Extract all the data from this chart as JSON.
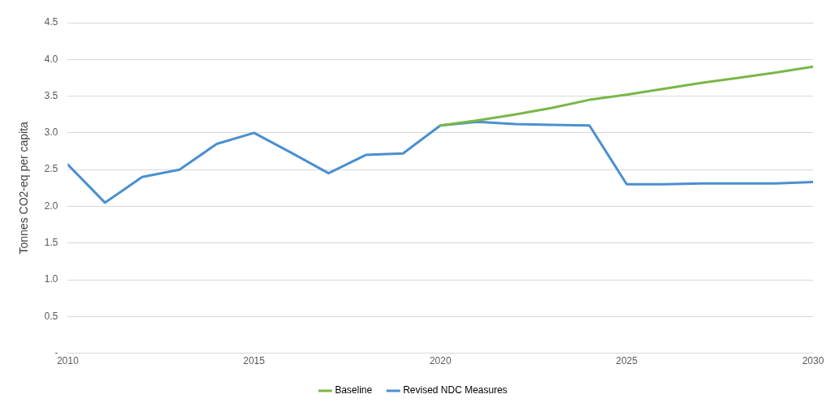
{
  "chart_data": {
    "type": "line",
    "ylabel": "Tonnes CO2-eq per capita",
    "xlim": [
      2010,
      2030
    ],
    "xticks": [
      2010,
      2015,
      2020,
      2025,
      2030
    ],
    "ylim": [
      0,
      4.5
    ],
    "yticks": [
      {
        "value": 0,
        "label": "-"
      },
      0.5,
      {
        "value": 1,
        "label": "1.0"
      },
      1.5,
      {
        "value": 2,
        "label": "2.0"
      },
      2.5,
      {
        "value": 3,
        "label": "3.0"
      },
      3.5,
      {
        "value": 4,
        "label": "4.0"
      },
      4.5
    ],
    "grid": "y",
    "legend": "bottom",
    "marker": "none",
    "line_style": "solid",
    "series": [
      {
        "name": "Baseline",
        "color": "#7ab648",
        "x": [
          2020,
          2021,
          2022,
          2023,
          2024,
          2025,
          2026,
          2027,
          2028,
          2029,
          2030
        ],
        "values": [
          3.1,
          3.17,
          3.25,
          3.34,
          3.45,
          3.52,
          3.6,
          3.68,
          3.75,
          3.82,
          3.9
        ]
      },
      {
        "name": "Revised NDC Measures",
        "color": "#4a90d0",
        "x": [
          2010,
          2011,
          2012,
          2013,
          2014,
          2015,
          2016,
          2017,
          2018,
          2019,
          2020,
          2021,
          2022,
          2023,
          2024,
          2025,
          2026,
          2027,
          2028,
          2029,
          2030
        ],
        "values": [
          2.57,
          2.05,
          2.4,
          2.5,
          2.85,
          3.0,
          2.73,
          2.45,
          2.7,
          2.72,
          3.1,
          3.15,
          3.12,
          3.11,
          3.1,
          2.3,
          2.3,
          2.31,
          2.31,
          2.31,
          2.33
        ]
      }
    ]
  }
}
